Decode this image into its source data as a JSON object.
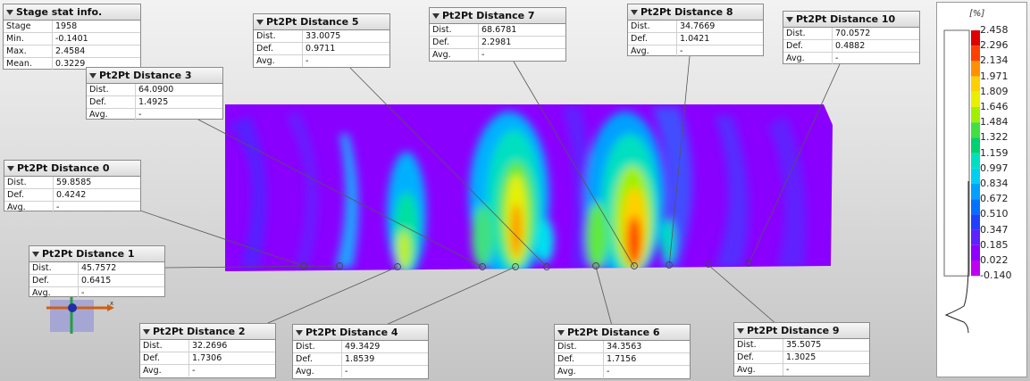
{
  "stage_panel": {
    "title": "Stage stat info.",
    "rows": [
      {
        "k": "Stage",
        "v": "1958"
      },
      {
        "k": "Min.",
        "v": "-0.1401"
      },
      {
        "k": "Max.",
        "v": "2.4584"
      },
      {
        "k": "Mean.",
        "v": "0.3229"
      }
    ]
  },
  "distances": [
    {
      "id": "d0",
      "title": "Pt2Pt Distance 0",
      "dist": "59.8585",
      "def": "0.4242",
      "avg": "-"
    },
    {
      "id": "d1",
      "title": "Pt2Pt Distance 1",
      "dist": "45.7572",
      "def": "0.6415",
      "avg": "-"
    },
    {
      "id": "d2",
      "title": "Pt2Pt Distance 2",
      "dist": "32.2696",
      "def": "1.7306",
      "avg": "-"
    },
    {
      "id": "d3",
      "title": "Pt2Pt Distance 3",
      "dist": "64.0900",
      "def": "1.4925",
      "avg": "-"
    },
    {
      "id": "d4",
      "title": "Pt2Pt Distance 4",
      "dist": "49.3429",
      "def": "1.8539",
      "avg": "-"
    },
    {
      "id": "d5",
      "title": "Pt2Pt Distance 5",
      "dist": "33.0075",
      "def": "0.9711",
      "avg": "-"
    },
    {
      "id": "d6",
      "title": "Pt2Pt Distance 6",
      "dist": "34.3563",
      "def": "1.7156",
      "avg": "-"
    },
    {
      "id": "d7",
      "title": "Pt2Pt Distance 7",
      "dist": "68.6781",
      "def": "2.2981",
      "avg": "-"
    },
    {
      "id": "d8",
      "title": "Pt2Pt Distance 8",
      "dist": "34.7669",
      "def": "1.0421",
      "avg": "-"
    },
    {
      "id": "d9",
      "title": "Pt2Pt Distance 9",
      "dist": "35.5075",
      "def": "1.3025",
      "avg": "-"
    },
    {
      "id": "d10",
      "title": "Pt2Pt Distance 10",
      "dist": "70.0572",
      "def": "0.4882",
      "avg": "-"
    }
  ],
  "labels": {
    "dist": "Dist.",
    "def": "Def.",
    "avg": "Avg."
  },
  "legend": {
    "unit": "[%]",
    "ticks": [
      "2.458",
      "2.296",
      "2.134",
      "1.971",
      "1.809",
      "1.646",
      "1.484",
      "1.322",
      "1.159",
      "0.997",
      "0.834",
      "0.672",
      "0.510",
      "0.347",
      "0.185",
      "0.022",
      "-0.140"
    ],
    "colors": [
      "#e00000",
      "#ff4000",
      "#ff9000",
      "#ffd000",
      "#e8f000",
      "#a0f000",
      "#40e040",
      "#00d070",
      "#00e0c0",
      "#00d0f0",
      "#00a0ff",
      "#0070ff",
      "#2040ff",
      "#6020ff",
      "#9000ff",
      "#c000f0"
    ]
  },
  "axis": {
    "x_label": "x",
    "y_label": "y"
  }
}
